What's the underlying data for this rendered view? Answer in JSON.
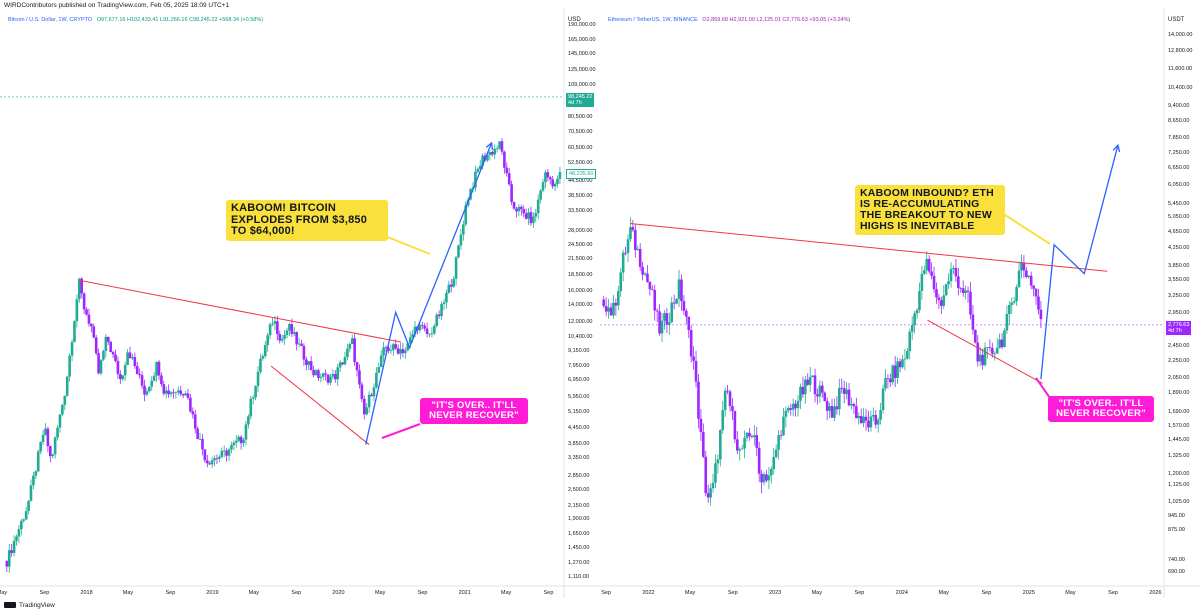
{
  "header": {
    "published": "WIRDContributors published on TradingView.com, Feb 05, 2025 18:09 UTC+1"
  },
  "footer": {
    "brand": "TradingView"
  },
  "chart_data": [
    {
      "type": "candlestick",
      "legend": {
        "symbol": "Bitcoin / U.S. Dollar, 1W, CRYPTO",
        "ohlc": "O97,677.16 H102,433.41 L91,266.16 C98,245.22 +568.34 (+0.58%)"
      },
      "currency": "USD",
      "y_scale": "log",
      "ylim": [
        1050,
        205000
      ],
      "y_ticks": [
        1110,
        1270,
        1450,
        1650,
        1900,
        2150,
        2500,
        2850,
        3350,
        3850,
        4450,
        5150,
        5950,
        6950,
        7950,
        9150,
        10400,
        12000,
        14000,
        16000,
        18500,
        21500,
        24500,
        28000,
        33500,
        38500,
        44500,
        52500,
        60500,
        70500,
        80500,
        94000,
        109000,
        125000,
        145000,
        165000,
        190000
      ],
      "y_tick_labels": [
        "1,110.00",
        "1,270.00",
        "1,450.00",
        "1,650.00",
        "1,900.00",
        "2,150.00",
        "2,500.00",
        "2,850.00",
        "3,350.00",
        "3,850.00",
        "4,450.00",
        "5,150.00",
        "5,950.00",
        "6,950.00",
        "7,950.00",
        "9,150.00",
        "10,400.00",
        "12,000.00",
        "14,000.00",
        "16,000.00",
        "18,500.00",
        "21,500.00",
        "24,500.00",
        "28,000.00",
        "33,500.00",
        "38,500.00",
        "44,500.00",
        "52,500.00",
        "60,500.00",
        "70,500.00",
        "80,500.00",
        "94,000.00",
        "109,000.00",
        "125,000.00",
        "145,000.00",
        "165,000.00",
        "190,000.00"
      ],
      "x_range": [
        "2017-05-01",
        "2021-10-10"
      ],
      "x_tick_labels": [
        {
          "date": "2017-05-01",
          "label": "May"
        },
        {
          "date": "2017-09-01",
          "label": "Sep"
        },
        {
          "date": "2018-01-01",
          "label": "2018"
        },
        {
          "date": "2018-05-01",
          "label": "May"
        },
        {
          "date": "2018-09-01",
          "label": "Sep"
        },
        {
          "date": "2019-01-01",
          "label": "2019"
        },
        {
          "date": "2019-05-01",
          "label": "May"
        },
        {
          "date": "2019-09-01",
          "label": "Sep"
        },
        {
          "date": "2020-01-01",
          "label": "2020"
        },
        {
          "date": "2020-05-01",
          "label": "May"
        },
        {
          "date": "2020-09-01",
          "label": "Sep"
        },
        {
          "date": "2021-01-01",
          "label": "2021"
        },
        {
          "date": "2021-05-01",
          "label": "May"
        },
        {
          "date": "2021-09-01",
          "label": "Sep"
        }
      ],
      "price_path": [
        [
          "2017-05-15",
          1300
        ],
        [
          "2017-07-15",
          2200
        ],
        [
          "2017-09-01",
          4500
        ],
        [
          "2017-09-20",
          3300
        ],
        [
          "2017-11-01",
          6500
        ],
        [
          "2017-12-10",
          17500
        ],
        [
          "2017-12-24",
          14000
        ],
        [
          "2018-01-15",
          11500
        ],
        [
          "2018-02-05",
          7500
        ],
        [
          "2018-03-01",
          10500
        ],
        [
          "2018-04-10",
          7000
        ],
        [
          "2018-05-01",
          9400
        ],
        [
          "2018-06-20",
          6200
        ],
        [
          "2018-07-25",
          8200
        ],
        [
          "2018-08-15",
          6300
        ],
        [
          "2018-10-15",
          6400
        ],
        [
          "2018-11-20",
          4200
        ],
        [
          "2018-12-15",
          3300
        ],
        [
          "2019-02-01",
          3500
        ],
        [
          "2019-03-30",
          4100
        ],
        [
          "2019-05-15",
          7800
        ],
        [
          "2019-06-26",
          12500
        ],
        [
          "2019-07-20",
          10200
        ],
        [
          "2019-08-10",
          11500
        ],
        [
          "2019-09-20",
          9000
        ],
        [
          "2019-10-25",
          7400
        ],
        [
          "2019-11-25",
          7200
        ],
        [
          "2019-12-20",
          7200
        ],
        [
          "2020-02-10",
          10000
        ],
        [
          "2020-03-15",
          5000
        ],
        [
          "2020-04-15",
          7000
        ],
        [
          "2020-05-15",
          9500
        ],
        [
          "2020-07-15",
          9300
        ],
        [
          "2020-08-15",
          11800
        ],
        [
          "2020-09-20",
          10600
        ],
        [
          "2020-10-25",
          13500
        ],
        [
          "2020-12-01",
          19000
        ],
        [
          "2021-01-08",
          38000
        ],
        [
          "2021-02-20",
          55000
        ],
        [
          "2021-04-14",
          63000
        ],
        [
          "2021-05-19",
          36000
        ],
        [
          "2021-06-20",
          33000
        ],
        [
          "2021-07-20",
          31000
        ],
        [
          "2021-08-20",
          48000
        ],
        [
          "2021-09-25",
          43000
        ],
        [
          "2021-10-05",
          50000
        ]
      ],
      "current_price": {
        "value": 98245.22,
        "label": "98,245.22",
        "sublabel": "4d 7h"
      },
      "other_price_tag": {
        "value": 48235.6,
        "label": "48,235.60"
      },
      "drawings": {
        "resistance": {
          "from": [
            "2017-12-10",
            17800
          ],
          "to": [
            "2020-07-01",
            10000
          ],
          "color": "#f23645"
        },
        "support": {
          "from": [
            "2019-06-20",
            8000
          ],
          "to": [
            "2020-03-30",
            3850
          ],
          "color": "#f23645"
        },
        "projection": {
          "points": [
            [
              "2020-03-20",
              3850
            ],
            [
              "2020-06-15",
              13200
            ],
            [
              "2020-07-25",
              9500
            ],
            [
              "2021-03-20",
              64000
            ]
          ],
          "color": "#2962ff"
        }
      },
      "callouts": [
        {
          "text": "KABOOM! BITCOIN EXPLODES FROM $3,850 TO $64,000!",
          "style": "yellow"
        },
        {
          "text": "\"IT'S OVER.. IT'LL NEVER RECOVER\"",
          "style": "magenta"
        }
      ]
    },
    {
      "type": "candlestick",
      "legend": {
        "symbol": "Ethereum / TetherUS, 1W, BINANCE",
        "ohlc": "O2,869.68 H2,921.00 L2,125.01 C2,776.63 +93.05 (+3.24%)"
      },
      "currency": "USDT",
      "y_scale": "log",
      "ylim": [
        650,
        15500
      ],
      "y_ticks": [
        690,
        740,
        875,
        945,
        1025,
        1125,
        1200,
        1325,
        1445,
        1570,
        1690,
        1890,
        2050,
        2250,
        2450,
        2650,
        2950,
        3250,
        3550,
        3850,
        4250,
        4650,
        5050,
        5450,
        6050,
        6650,
        7250,
        7850,
        8650,
        9400,
        10400,
        11600,
        12800,
        14000
      ],
      "y_tick_labels": [
        "690.00",
        "740.00",
        "875.00",
        "945.00",
        "1,025.00",
        "1,125.00",
        "1,200.00",
        "1,325.00",
        "1,445.00",
        "1,570.00",
        "1,690.00",
        "1,890.00",
        "2,050.00",
        "2,250.00",
        "2,450.00",
        "2,650.00",
        "2,950.00",
        "3,250.00",
        "3,550.00",
        "3,850.00",
        "4,250.00",
        "4,650.00",
        "5,050.00",
        "5,450.00",
        "6,050.00",
        "6,650.00",
        "7,250.00",
        "7,850.00",
        "8,650.00",
        "9,400.00",
        "10,400.00",
        "11,600.00",
        "12,800.00",
        "14,000.00"
      ],
      "x_range": [
        "2021-08-20",
        "2026-01-20"
      ],
      "x_tick_labels": [
        {
          "date": "2021-09-01",
          "label": "Sep"
        },
        {
          "date": "2022-01-01",
          "label": "2022"
        },
        {
          "date": "2022-05-01",
          "label": "May"
        },
        {
          "date": "2022-09-01",
          "label": "Sep"
        },
        {
          "date": "2023-01-01",
          "label": "2023"
        },
        {
          "date": "2023-05-01",
          "label": "May"
        },
        {
          "date": "2023-09-01",
          "label": "Sep"
        },
        {
          "date": "2024-01-01",
          "label": "2024"
        },
        {
          "date": "2024-05-01",
          "label": "May"
        },
        {
          "date": "2024-09-01",
          "label": "Sep"
        },
        {
          "date": "2025-01-01",
          "label": "2025"
        },
        {
          "date": "2025-05-01",
          "label": "May"
        },
        {
          "date": "2025-09-01",
          "label": "Sep"
        },
        {
          "date": "2026-01-01",
          "label": "2026"
        }
      ],
      "price_path": [
        [
          "2021-08-25",
          3200
        ],
        [
          "2021-09-20",
          2950
        ],
        [
          "2021-10-20",
          4000
        ],
        [
          "2021-11-10",
          4700
        ],
        [
          "2021-12-05",
          4100
        ],
        [
          "2022-01-10",
          3300
        ],
        [
          "2022-02-01",
          2700
        ],
        [
          "2022-03-01",
          2950
        ],
        [
          "2022-03-31",
          3450
        ],
        [
          "2022-05-10",
          2300
        ],
        [
          "2022-06-18",
          1050
        ],
        [
          "2022-07-05",
          1100
        ],
        [
          "2022-08-14",
          1950
        ],
        [
          "2022-09-20",
          1350
        ],
        [
          "2022-11-01",
          1550
        ],
        [
          "2022-11-15",
          1200
        ],
        [
          "2022-12-20",
          1200
        ],
        [
          "2023-01-20",
          1600
        ],
        [
          "2023-04-15",
          2050
        ],
        [
          "2023-06-15",
          1700
        ],
        [
          "2023-07-15",
          1950
        ],
        [
          "2023-09-10",
          1600
        ],
        [
          "2023-10-20",
          1600
        ],
        [
          "2023-11-15",
          2000
        ],
        [
          "2024-01-10",
          2300
        ],
        [
          "2024-03-10",
          3950
        ],
        [
          "2024-04-20",
          3100
        ],
        [
          "2024-05-25",
          3800
        ],
        [
          "2024-07-10",
          3200
        ],
        [
          "2024-08-05",
          2300
        ],
        [
          "2024-09-10",
          2350
        ],
        [
          "2024-10-20",
          2600
        ],
        [
          "2024-11-15",
          3200
        ],
        [
          "2024-12-10",
          3900
        ],
        [
          "2025-01-05",
          3600
        ],
        [
          "2025-01-25",
          3200
        ],
        [
          "2025-02-05",
          2780
        ]
      ],
      "current_price": {
        "value": 2776.63,
        "label": "2,776.63",
        "sublabel": "4d 7h"
      },
      "drawings": {
        "resistance": {
          "from": [
            "2021-11-10",
            4900
          ],
          "to": [
            "2025-08-15",
            3750
          ],
          "color": "#f23645"
        },
        "support": {
          "from": [
            "2024-03-15",
            2850
          ],
          "to": [
            "2025-02-10",
            2000
          ],
          "color": "#f23645"
        },
        "projection": {
          "points": [
            [
              "2025-02-05",
              2050
            ],
            [
              "2025-03-15",
              4350
            ],
            [
              "2025-06-10",
              3700
            ],
            [
              "2025-09-15",
              7600
            ]
          ],
          "color": "#2962ff"
        }
      },
      "callouts": [
        {
          "text": "KABOOM INBOUND? ETH IS RE-ACCUMULATING THE BREAKOUT TO NEW HIGHS IS INEVITABLE",
          "style": "yellow"
        },
        {
          "text": "\"IT'S OVER.. IT'LL NEVER RECOVER\"",
          "style": "magenta"
        }
      ]
    }
  ]
}
